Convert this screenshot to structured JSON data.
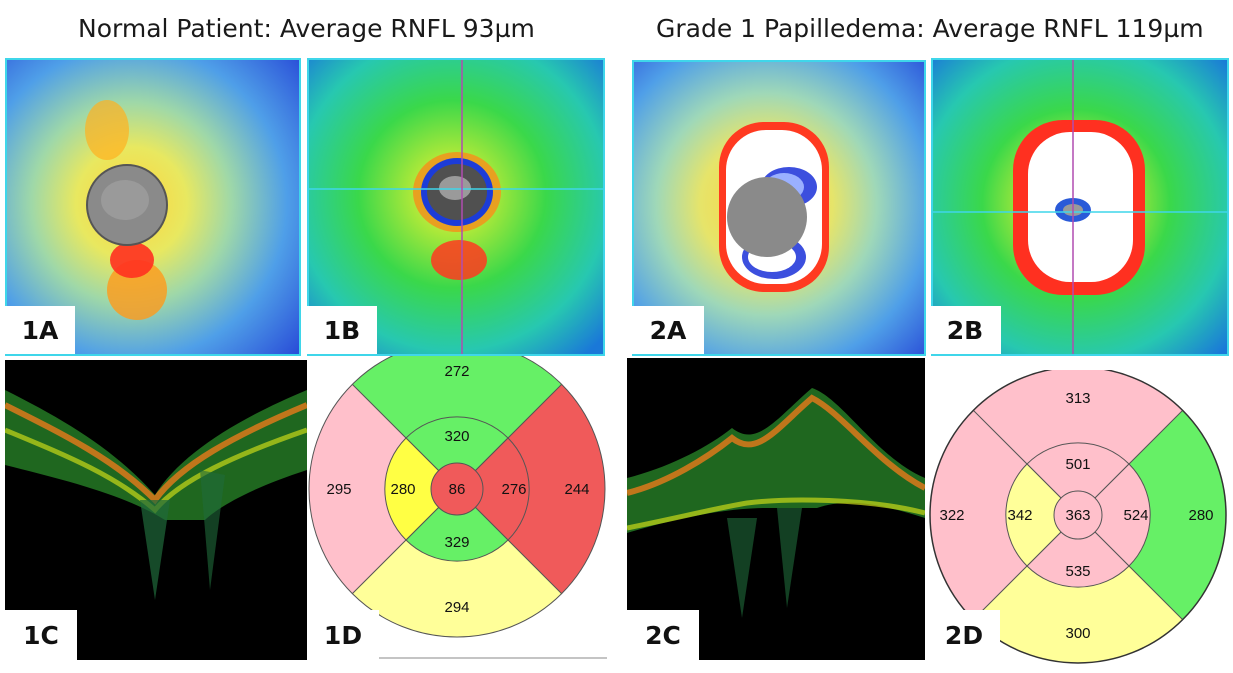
{
  "titles": {
    "left": "Normal Patient: Average RNFL 93µm",
    "right": "Grade 1 Papilledema: Average RNFL 119µm"
  },
  "labels": {
    "p1a": "1A",
    "p1b": "1B",
    "p1c": "1C",
    "p1d": "1D",
    "p2a": "2A",
    "p2b": "2B",
    "p2c": "2C",
    "p2d": "2D"
  },
  "grid1": {
    "superior_outer": "272",
    "nasal_outer": "295",
    "temporal_outer": "244",
    "inferior_outer": "294",
    "superior_inner": "320",
    "nasal_inner": "280",
    "temporal_inner": "276",
    "inferior_inner": "329",
    "center": "86"
  },
  "grid2": {
    "superior_outer": "313",
    "nasal_outer": "322",
    "temporal_outer": "280",
    "inferior_outer": "300",
    "superior_inner": "501",
    "nasal_inner": "342",
    "temporal_inner": "524",
    "inferior_inner": "535",
    "center": "363"
  },
  "colors": {
    "green": "#66f066",
    "pink": "#ffc0cb",
    "yellow": "#ffff99",
    "yellow_strong": "#ffff44",
    "red": "#f05a5a",
    "frame": "#3fd6ea"
  }
}
